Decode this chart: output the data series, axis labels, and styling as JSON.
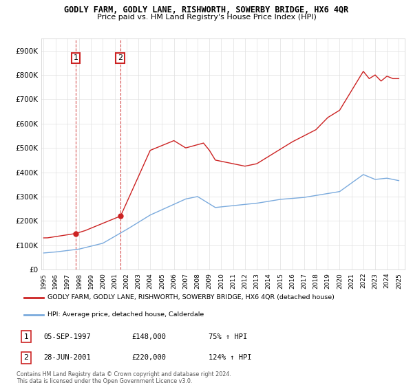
{
  "title": "GODLY FARM, GODLY LANE, RISHWORTH, SOWERBY BRIDGE, HX6 4QR",
  "subtitle": "Price paid vs. HM Land Registry's House Price Index (HPI)",
  "ylim": [
    0,
    950000
  ],
  "yticks": [
    0,
    100000,
    200000,
    300000,
    400000,
    500000,
    600000,
    700000,
    800000,
    900000
  ],
  "ytick_labels": [
    "£0",
    "£100K",
    "£200K",
    "£300K",
    "£400K",
    "£500K",
    "£600K",
    "£700K",
    "£800K",
    "£900K"
  ],
  "hpi_color": "#7aaadd",
  "price_color": "#cc2222",
  "sale1_date": "05-SEP-1997",
  "sale1_price": 148000,
  "sale1_hpi": "75% ↑ HPI",
  "sale2_date": "28-JUN-2001",
  "sale2_price": 220000,
  "sale2_hpi": "124% ↑ HPI",
  "legend_property": "GODLY FARM, GODLY LANE, RISHWORTH, SOWERBY BRIDGE, HX6 4QR (detached house)",
  "legend_hpi": "HPI: Average price, detached house, Calderdale",
  "footer": "Contains HM Land Registry data © Crown copyright and database right 2024.\nThis data is licensed under the Open Government Licence v3.0.",
  "x_start_year": 1995,
  "x_end_year": 2025
}
